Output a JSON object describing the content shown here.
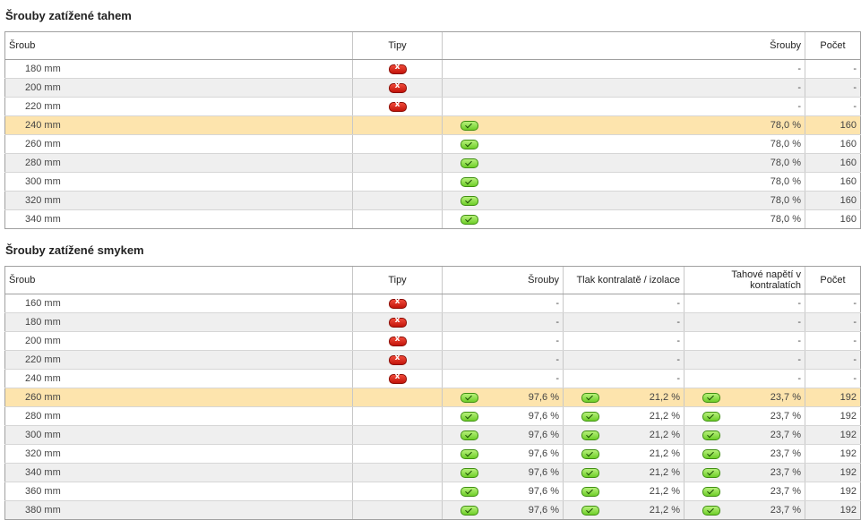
{
  "colors": {
    "selected_row": "#fde4ad",
    "alt_row": "#efefef",
    "ok": "#6fcf2a",
    "fail": "#c3140a"
  },
  "tension": {
    "title": "Šrouby zatížené tahem",
    "headers": {
      "srub": "Šroub",
      "tipy": "Tipy",
      "srouby": "Šrouby",
      "pocet": "Počet"
    },
    "rows": [
      {
        "size": "180 mm",
        "tip": "fail",
        "srouby": "-",
        "pocet": "-",
        "selected": false
      },
      {
        "size": "200 mm",
        "tip": "fail",
        "srouby": "-",
        "pocet": "-",
        "selected": false
      },
      {
        "size": "220 mm",
        "tip": "fail",
        "srouby": "-",
        "pocet": "-",
        "selected": false
      },
      {
        "size": "240 mm",
        "tip": "",
        "status": "ok",
        "srouby": "78,0 %",
        "pocet": "160",
        "selected": true
      },
      {
        "size": "260 mm",
        "tip": "",
        "status": "ok",
        "srouby": "78,0 %",
        "pocet": "160",
        "selected": false
      },
      {
        "size": "280 mm",
        "tip": "",
        "status": "ok",
        "srouby": "78,0 %",
        "pocet": "160",
        "selected": false
      },
      {
        "size": "300 mm",
        "tip": "",
        "status": "ok",
        "srouby": "78,0 %",
        "pocet": "160",
        "selected": false
      },
      {
        "size": "320 mm",
        "tip": "",
        "status": "ok",
        "srouby": "78,0 %",
        "pocet": "160",
        "selected": false
      },
      {
        "size": "340 mm",
        "tip": "",
        "status": "ok",
        "srouby": "78,0 %",
        "pocet": "160",
        "selected": false
      }
    ]
  },
  "shear": {
    "title": "Šrouby zatížené smykem",
    "headers": {
      "srub": "Šroub",
      "tipy": "Tipy",
      "srouby": "Šrouby",
      "tlak": "Tlak kontralatě / izolace",
      "tahove": "Tahové napětí v kontralatích",
      "pocet": "Počet"
    },
    "rows": [
      {
        "size": "160 mm",
        "tip": "fail",
        "srouby": "-",
        "tlak": "-",
        "tahove": "-",
        "pocet": "-",
        "selected": false
      },
      {
        "size": "180 mm",
        "tip": "fail",
        "srouby": "-",
        "tlak": "-",
        "tahove": "-",
        "pocet": "-",
        "selected": false
      },
      {
        "size": "200 mm",
        "tip": "fail",
        "srouby": "-",
        "tlak": "-",
        "tahove": "-",
        "pocet": "-",
        "selected": false
      },
      {
        "size": "220 mm",
        "tip": "fail",
        "srouby": "-",
        "tlak": "-",
        "tahove": "-",
        "pocet": "-",
        "selected": false
      },
      {
        "size": "240 mm",
        "tip": "fail",
        "srouby": "-",
        "tlak": "-",
        "tahove": "-",
        "pocet": "-",
        "selected": false
      },
      {
        "size": "260 mm",
        "tip": "",
        "status": "ok",
        "srouby": "97,6 %",
        "tlak": "21,2 %",
        "tahove": "23,7 %",
        "pocet": "192",
        "selected": true
      },
      {
        "size": "280 mm",
        "tip": "",
        "status": "ok",
        "srouby": "97,6 %",
        "tlak": "21,2 %",
        "tahove": "23,7 %",
        "pocet": "192",
        "selected": false
      },
      {
        "size": "300 mm",
        "tip": "",
        "status": "ok",
        "srouby": "97,6 %",
        "tlak": "21,2 %",
        "tahove": "23,7 %",
        "pocet": "192",
        "selected": false
      },
      {
        "size": "320 mm",
        "tip": "",
        "status": "ok",
        "srouby": "97,6 %",
        "tlak": "21,2 %",
        "tahove": "23,7 %",
        "pocet": "192",
        "selected": false
      },
      {
        "size": "340 mm",
        "tip": "",
        "status": "ok",
        "srouby": "97,6 %",
        "tlak": "21,2 %",
        "tahove": "23,7 %",
        "pocet": "192",
        "selected": false
      },
      {
        "size": "360 mm",
        "tip": "",
        "status": "ok",
        "srouby": "97,6 %",
        "tlak": "21,2 %",
        "tahove": "23,7 %",
        "pocet": "192",
        "selected": false
      },
      {
        "size": "380 mm",
        "tip": "",
        "status": "ok",
        "srouby": "97,6 %",
        "tlak": "21,2 %",
        "tahove": "23,7 %",
        "pocet": "192",
        "selected": false
      }
    ]
  }
}
